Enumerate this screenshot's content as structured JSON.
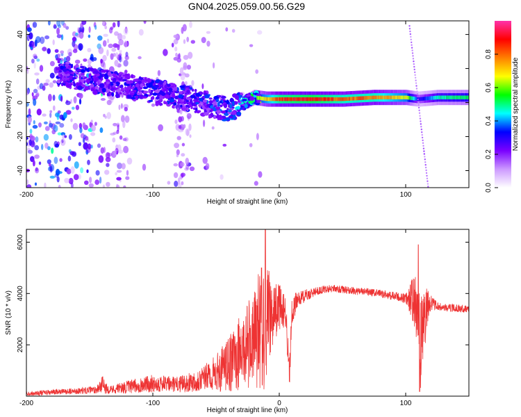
{
  "title": "GN04.2025.059.00.56.G29",
  "chart_data": [
    {
      "type": "heatmap",
      "xlabel": "Height of straight line (km)",
      "ylabel": "Frequency (Hz)",
      "xlim": [
        -200,
        150
      ],
      "ylim": [
        -50,
        48
      ],
      "xticks": [
        "-200",
        "-100",
        "0",
        "100"
      ],
      "yticks": [
        "-40",
        "-20",
        "0",
        "20",
        "40"
      ],
      "colorbar": {
        "label": "Normalized spectral amplitude",
        "range": [
          0,
          1
        ],
        "ticks": [
          "0.0",
          "0.2",
          "0.4",
          "0.6",
          "0.8"
        ],
        "colors": [
          "#ffffff",
          "#cc99ff",
          "#7a00ff",
          "#0000ff",
          "#00ffff",
          "#00ff00",
          "#ffff00",
          "#ff8000",
          "#ff0000",
          "#ff33aa"
        ]
      },
      "ridge": {
        "x": [
          -170,
          -150,
          -130,
          -110,
          -90,
          -70,
          -50,
          -40,
          -30,
          -20,
          -10,
          0,
          25,
          50,
          75,
          100,
          110,
          125,
          150
        ],
        "frequency": [
          17,
          13,
          11,
          8,
          5,
          2,
          -3,
          -4,
          -1,
          3,
          2,
          2,
          2,
          2,
          3,
          3,
          2,
          3,
          3
        ],
        "amplitude": [
          0.3,
          0.3,
          0.28,
          0.3,
          0.3,
          0.32,
          0.35,
          0.35,
          0.45,
          0.6,
          0.75,
          0.9,
          0.95,
          0.85,
          0.85,
          0.7,
          0.3,
          0.5,
          0.55
        ]
      }
    },
    {
      "type": "line",
      "xlabel": "Height of straight line (km)",
      "ylabel": "SNR (10 * v/v)",
      "xlim": [
        -200,
        150
      ],
      "ylim": [
        0,
        6500
      ],
      "xticks": [
        "-200",
        "-100",
        "0",
        "100"
      ],
      "yticks": [
        "2000",
        "4000",
        "6000"
      ],
      "color": "#ee3333",
      "envelope": {
        "x": [
          -200,
          -160,
          -145,
          -140,
          -135,
          -120,
          -100,
          -80,
          -70,
          -60,
          -50,
          -40,
          -35,
          -30,
          -25,
          -20,
          -15,
          -12,
          -10,
          -5,
          0,
          5,
          8,
          10,
          12,
          15,
          20,
          30,
          40,
          50,
          60,
          80,
          100,
          105,
          108,
          110,
          112,
          115,
          118,
          120,
          125,
          130,
          150
        ],
        "mean": [
          100,
          200,
          250,
          450,
          250,
          350,
          500,
          450,
          550,
          700,
          900,
          1200,
          1500,
          1700,
          2000,
          2200,
          2700,
          2800,
          3000,
          3200,
          3500,
          3300,
          800,
          3300,
          3500,
          3800,
          3900,
          4100,
          4200,
          4150,
          4100,
          4000,
          3800,
          3800,
          3500,
          3000,
          2000,
          3000,
          3600,
          3650,
          3500,
          3450,
          3400
        ],
        "amplitude": [
          90,
          120,
          150,
          350,
          150,
          250,
          350,
          300,
          400,
          500,
          700,
          1100,
          1300,
          1500,
          1700,
          1800,
          2500,
          2600,
          2200,
          1200,
          900,
          700,
          700,
          500,
          500,
          300,
          250,
          150,
          150,
          150,
          150,
          150,
          200,
          800,
          1200,
          1400,
          1900,
          1200,
          600,
          300,
          150,
          150,
          150
        ]
      },
      "peaks": [
        {
          "x": -11,
          "y": 6500
        },
        {
          "x": -14,
          "y": 5000
        },
        {
          "x": 110,
          "y": 5900
        },
        {
          "x": 111,
          "y": 180
        }
      ]
    }
  ]
}
